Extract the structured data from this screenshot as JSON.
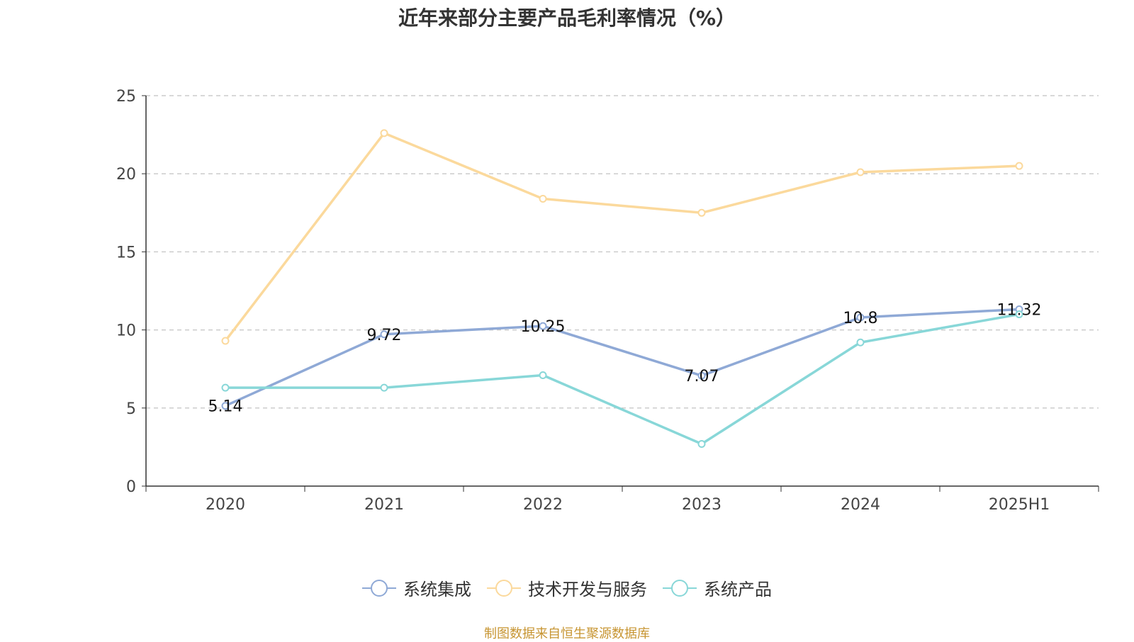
{
  "title": "近年来部分主要产品毛利率情况（%）",
  "source": "制图数据来自恒生聚源数据库",
  "chart_data": {
    "type": "line",
    "title": "近年来部分主要产品毛利率情况（%）",
    "categories": [
      "2020",
      "2021",
      "2022",
      "2023",
      "2024",
      "2025H1"
    ],
    "ylim": [
      0,
      25
    ],
    "yticks": [
      0,
      5,
      10,
      15,
      20,
      25
    ],
    "grid": true,
    "legend_position": "bottom",
    "series": [
      {
        "name": "系统集成",
        "color": "#8fa9d6",
        "values": [
          5.14,
          9.72,
          10.25,
          7.07,
          10.8,
          11.32
        ],
        "labels": [
          "5.14",
          "9.72",
          "10.25",
          "7.07",
          "10.8",
          "11.32"
        ]
      },
      {
        "name": "技术开发与服务",
        "color": "#fbd99c",
        "values": [
          9.3,
          22.6,
          18.4,
          17.5,
          20.1,
          20.5
        ]
      },
      {
        "name": "系统产品",
        "color": "#88d7d8",
        "values": [
          6.3,
          6.3,
          7.1,
          2.7,
          9.2,
          11.0
        ]
      }
    ]
  }
}
